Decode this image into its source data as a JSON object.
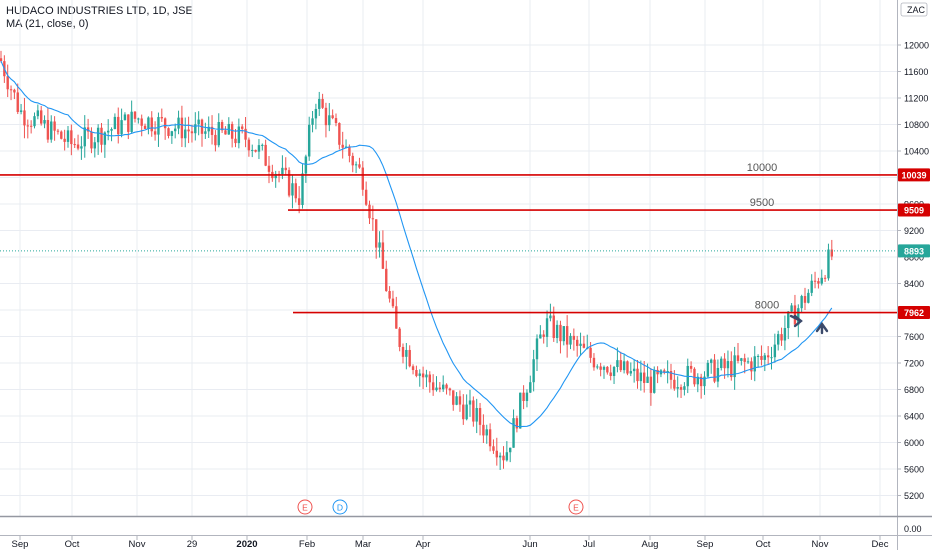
{
  "header": {
    "title": "HUDACO INDUSTRIES LTD, 1D, JSE",
    "indicator": "MA (21, close, 0)"
  },
  "chart_data": {
    "type": "candlestick",
    "currency": "ZAC",
    "y_ticks": [
      "12000",
      "11600",
      "11200",
      "10800",
      "10400",
      "10000",
      "9600",
      "9200",
      "8800",
      "8400",
      "8000",
      "7600",
      "7200",
      "6800",
      "6400",
      "6000",
      "5600",
      "5200"
    ],
    "volume_tick": "0.00",
    "x_ticks": [
      "Sep",
      "Oct",
      "Nov",
      "29",
      "2020",
      "Feb",
      "Mar",
      "Apr",
      "Jun",
      "Jul",
      "Aug",
      "Sep",
      "Oct",
      "Nov",
      "Dec"
    ],
    "last_price": "8893",
    "horizontal_lines": [
      {
        "label": "10000",
        "price_tag": "10039",
        "value": 10039
      },
      {
        "label": "9500",
        "price_tag": "9509",
        "value": 9509
      },
      {
        "label": "8000",
        "price_tag": "7962",
        "value": 7962
      }
    ],
    "events": [
      {
        "label": "E",
        "month": "Jan 2020"
      },
      {
        "label": "D",
        "month": "Feb 2020"
      },
      {
        "label": "E",
        "month": "Jun 2020"
      }
    ],
    "price_path": [
      [
        "Aug 2019",
        11800
      ],
      [
        "Sep 2019",
        11000
      ],
      [
        "Oct 2019",
        10500
      ],
      [
        "Nov 2019",
        10900
      ],
      [
        "Dec 2019",
        10700
      ],
      [
        "Jan 2020",
        10600
      ],
      [
        "Feb 2020",
        9700
      ],
      [
        "Feb 2020 b",
        11200
      ],
      [
        "Mar 2020",
        10000
      ],
      [
        "Mar 2020 b",
        7600
      ],
      [
        "Apr 2020",
        7000
      ],
      [
        "May 2020",
        6400
      ],
      [
        "Jun 2020",
        5800
      ],
      [
        "Jun 2020 b",
        7800
      ],
      [
        "Jul 2020",
        7300
      ],
      [
        "Aug 2020",
        6900
      ],
      [
        "Sep 2020",
        7050
      ],
      [
        "Oct 2020",
        7250
      ],
      [
        "Nov 2020",
        8300
      ],
      [
        "Nov 2020 b",
        8893
      ]
    ],
    "colors": {
      "up": "#26a69a",
      "down": "#ef5350",
      "ma": "#2196f3",
      "hline": "#d50000",
      "grid": "#e9ecf2"
    }
  }
}
